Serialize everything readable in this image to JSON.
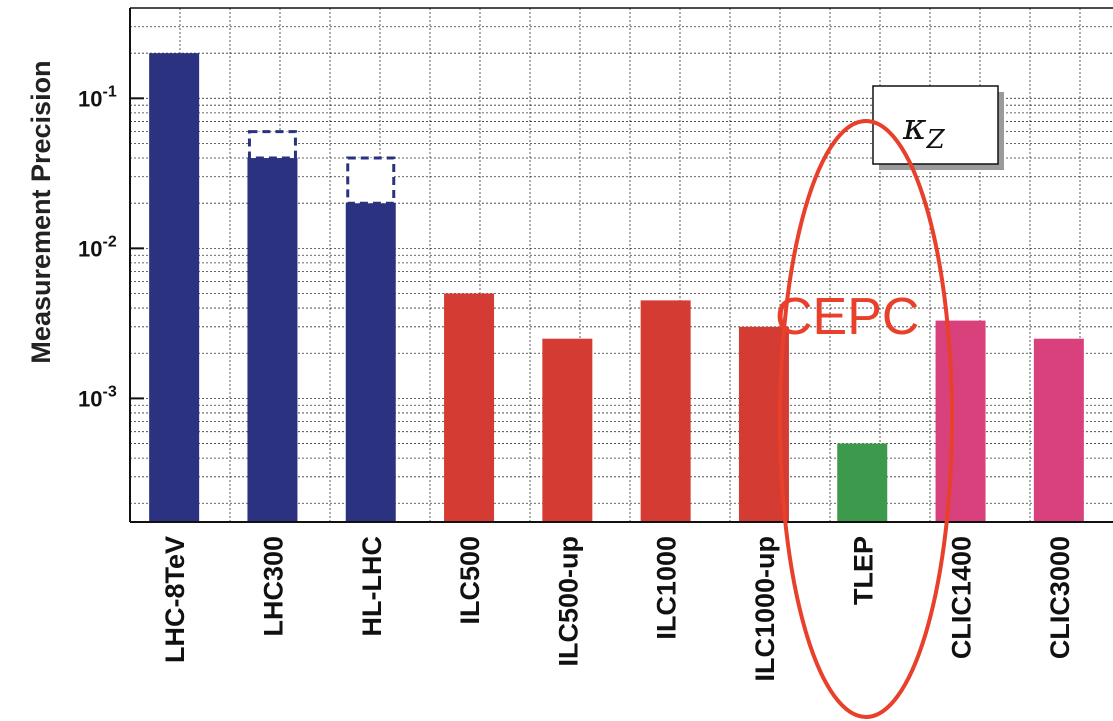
{
  "chart_data": {
    "type": "bar",
    "title": "",
    "xlabel": "",
    "ylabel": "Measurement Precision",
    "yscale": "log",
    "ylim": [
      0.00015,
      0.4
    ],
    "grid": true,
    "yticks": [
      {
        "value": 0.1,
        "base": "10",
        "exp": "-1"
      },
      {
        "value": 0.01,
        "base": "10",
        "exp": "-2"
      },
      {
        "value": 0.001,
        "base": "10",
        "exp": "-3"
      }
    ],
    "categories": [
      "LHC-8TeV",
      "LHC300",
      "HL-LHC",
      "ILC500",
      "ILC500-up",
      "ILC1000",
      "ILC1000-up",
      "TLEP",
      "CLIC1400",
      "CLIC3000"
    ],
    "values": [
      0.2,
      0.04,
      0.02,
      0.005,
      0.0025,
      0.0045,
      0.003,
      0.0005,
      0.0033,
      0.0025
    ],
    "upper_values": [
      null,
      0.06,
      0.04,
      null,
      null,
      null,
      null,
      null,
      null,
      null
    ],
    "colors": [
      "#2b3280",
      "#2b3280",
      "#2b3280",
      "#d43c33",
      "#d43c33",
      "#d43c33",
      "#d43c33",
      "#3d9a4c",
      "#d9417c",
      "#d9417c"
    ],
    "legend": {
      "label": "κ",
      "subscript": "Z"
    },
    "annotation": {
      "text": "CEPC",
      "color": "#e8402a"
    }
  }
}
